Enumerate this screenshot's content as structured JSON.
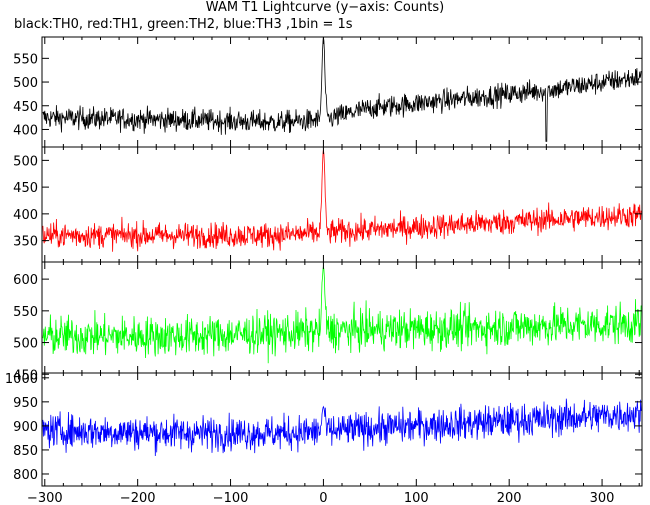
{
  "title": "WAM T1 Lightcurve (y−axis: Counts)",
  "subtitle": "black:TH0, red:TH1, green:TH2, blue:TH3 ,1bin = 1s",
  "chart_data": [
    {
      "type": "line",
      "series": [
        {
          "name": "TH0",
          "color": "#000000"
        }
      ],
      "xlim": [
        -303,
        343
      ],
      "ylim": [
        363,
        595
      ],
      "yticks": [
        400,
        450,
        500,
        550
      ],
      "x_ticks": [
        -300,
        -200,
        -100,
        0,
        100,
        200,
        300
      ],
      "trend": {
        "x": [
          -300,
          -150,
          -50,
          0,
          50,
          150,
          250,
          340
        ],
        "y": [
          425,
          420,
          415,
          420,
          445,
          465,
          485,
          510
        ]
      },
      "noise_amplitude": 30,
      "peak": {
        "x": 0,
        "y": 595
      },
      "dips": [
        {
          "x": 240,
          "y": 375
        }
      ]
    },
    {
      "type": "line",
      "series": [
        {
          "name": "TH1",
          "color": "#ff0000"
        }
      ],
      "xlim": [
        -303,
        343
      ],
      "ylim": [
        310,
        525
      ],
      "yticks": [
        350,
        400,
        450,
        500
      ],
      "x_ticks": [
        -300,
        -200,
        -100,
        0,
        100,
        200,
        300
      ],
      "trend": {
        "x": [
          -300,
          -150,
          -50,
          0,
          50,
          150,
          250,
          340
        ],
        "y": [
          360,
          360,
          360,
          365,
          370,
          380,
          390,
          398
        ]
      },
      "noise_amplitude": 30,
      "peak": {
        "x": 0,
        "y": 520
      },
      "dips": []
    },
    {
      "type": "line",
      "series": [
        {
          "name": "TH2",
          "color": "#00ff00"
        }
      ],
      "xlim": [
        -303,
        343
      ],
      "ylim": [
        452,
        627
      ],
      "yticks": [
        450,
        500,
        550,
        600
      ],
      "x_ticks": [
        -300,
        -200,
        -100,
        0,
        100,
        200,
        300
      ],
      "trend": {
        "x": [
          -300,
          -150,
          -50,
          0,
          50,
          150,
          250,
          340
        ],
        "y": [
          510,
          510,
          515,
          518,
          520,
          522,
          527,
          530
        ]
      },
      "noise_amplitude": 40,
      "peak": {
        "x": 0,
        "y": 620
      },
      "dips": []
    },
    {
      "type": "line",
      "series": [
        {
          "name": "TH3",
          "color": "#0000ff"
        }
      ],
      "xlim": [
        -303,
        343
      ],
      "ylim": [
        775,
        1010
      ],
      "yticks": [
        800,
        850,
        900,
        950,
        1000
      ],
      "x_ticks": [
        -300,
        -200,
        -100,
        0,
        100,
        200,
        300
      ],
      "trend": {
        "x": [
          -300,
          -150,
          -50,
          0,
          50,
          150,
          250,
          340
        ],
        "y": [
          890,
          885,
          885,
          888,
          895,
          905,
          915,
          925
        ]
      },
      "noise_amplitude": 45,
      "peak": {
        "x": 0,
        "y": 940
      },
      "dips": []
    }
  ]
}
